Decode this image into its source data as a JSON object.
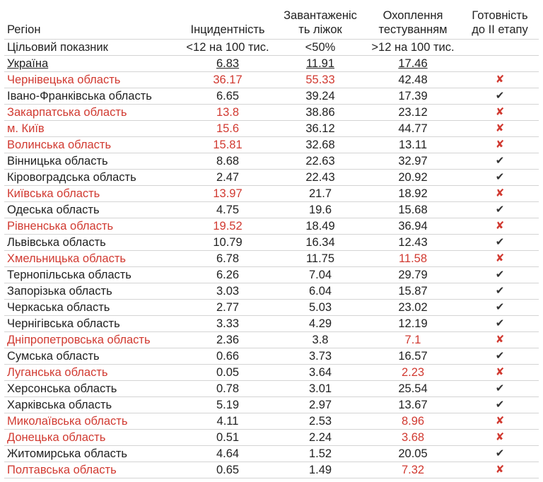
{
  "header": {
    "region": "Регіон",
    "incidence": "Інцидентність",
    "beds_line1": "Завантаженіс",
    "beds_line2": "ть ліжок",
    "testing_line1": "Охоплення",
    "testing_line2": "тестуванням",
    "ready_line1": "Готовність",
    "ready_line2": "до II етапу"
  },
  "target": {
    "label": "Цільовий показник",
    "incidence": "<12 на 100 тис.",
    "beds": "<50%",
    "testing": ">12 на 100 тис."
  },
  "ukraine": {
    "label": "Україна",
    "incidence": "6.83",
    "beds": "11.91",
    "testing": "17.46"
  },
  "colors": {
    "red": "#d13a31",
    "text": "#222222"
  },
  "icons": {
    "ready": "check-icon",
    "not_ready": "cross-icon",
    "ready_glyph": "✔",
    "not_ready_glyph": "✘"
  },
  "rows": [
    {
      "region": "Чернівецька область",
      "incidence": "36.17",
      "beds": "55.33",
      "testing": "42.48",
      "ready": false,
      "red_region": true,
      "red_incidence": true,
      "red_beds": true,
      "red_testing": false
    },
    {
      "region": "Івано-Франківська область",
      "incidence": "6.65",
      "beds": "39.24",
      "testing": "17.39",
      "ready": true,
      "red_region": false,
      "red_incidence": false,
      "red_beds": false,
      "red_testing": false
    },
    {
      "region": "Закарпатська область",
      "incidence": "13.8",
      "beds": "38.86",
      "testing": "23.12",
      "ready": false,
      "red_region": true,
      "red_incidence": true,
      "red_beds": false,
      "red_testing": false
    },
    {
      "region": "м. Київ",
      "incidence": "15.6",
      "beds": "36.12",
      "testing": "44.77",
      "ready": false,
      "red_region": true,
      "red_incidence": true,
      "red_beds": false,
      "red_testing": false
    },
    {
      "region": "Волинська область",
      "incidence": "15.81",
      "beds": "32.68",
      "testing": "13.11",
      "ready": false,
      "red_region": true,
      "red_incidence": true,
      "red_beds": false,
      "red_testing": false
    },
    {
      "region": "Вінницька область",
      "incidence": "8.68",
      "beds": "22.63",
      "testing": "32.97",
      "ready": true,
      "red_region": false,
      "red_incidence": false,
      "red_beds": false,
      "red_testing": false
    },
    {
      "region": "Кіровоградська область",
      "incidence": "2.47",
      "beds": "22.43",
      "testing": "20.92",
      "ready": true,
      "red_region": false,
      "red_incidence": false,
      "red_beds": false,
      "red_testing": false
    },
    {
      "region": "Київська область",
      "incidence": "13.97",
      "beds": "21.7",
      "testing": "18.92",
      "ready": false,
      "red_region": true,
      "red_incidence": true,
      "red_beds": false,
      "red_testing": false
    },
    {
      "region": "Одеська область",
      "incidence": "4.75",
      "beds": "19.6",
      "testing": "15.68",
      "ready": true,
      "red_region": false,
      "red_incidence": false,
      "red_beds": false,
      "red_testing": false
    },
    {
      "region": "Рівненська область",
      "incidence": "19.52",
      "beds": "18.49",
      "testing": "36.94",
      "ready": false,
      "red_region": true,
      "red_incidence": true,
      "red_beds": false,
      "red_testing": false
    },
    {
      "region": "Львівська область",
      "incidence": "10.79",
      "beds": "16.34",
      "testing": "12.43",
      "ready": true,
      "red_region": false,
      "red_incidence": false,
      "red_beds": false,
      "red_testing": false
    },
    {
      "region": "Хмельницька область",
      "incidence": "6.78",
      "beds": "11.75",
      "testing": "11.58",
      "ready": false,
      "red_region": true,
      "red_incidence": false,
      "red_beds": false,
      "red_testing": true
    },
    {
      "region": "Тернопільська область",
      "incidence": "6.26",
      "beds": "7.04",
      "testing": "29.79",
      "ready": true,
      "red_region": false,
      "red_incidence": false,
      "red_beds": false,
      "red_testing": false
    },
    {
      "region": "Запорізька область",
      "incidence": "3.03",
      "beds": "6.04",
      "testing": "15.87",
      "ready": true,
      "red_region": false,
      "red_incidence": false,
      "red_beds": false,
      "red_testing": false
    },
    {
      "region": "Черкаська область",
      "incidence": "2.77",
      "beds": "5.03",
      "testing": "23.02",
      "ready": true,
      "red_region": false,
      "red_incidence": false,
      "red_beds": false,
      "red_testing": false
    },
    {
      "region": "Чернігівська область",
      "incidence": "3.33",
      "beds": "4.29",
      "testing": "12.19",
      "ready": true,
      "red_region": false,
      "red_incidence": false,
      "red_beds": false,
      "red_testing": false
    },
    {
      "region": "Дніпропетровська область",
      "incidence": "2.36",
      "beds": "3.8",
      "testing": "7.1",
      "ready": false,
      "red_region": true,
      "red_incidence": false,
      "red_beds": false,
      "red_testing": true
    },
    {
      "region": "Сумська область",
      "incidence": "0.66",
      "beds": "3.73",
      "testing": "16.57",
      "ready": true,
      "red_region": false,
      "red_incidence": false,
      "red_beds": false,
      "red_testing": false
    },
    {
      "region": "Луганська область",
      "incidence": "0.05",
      "beds": "3.64",
      "testing": "2.23",
      "ready": false,
      "red_region": true,
      "red_incidence": false,
      "red_beds": false,
      "red_testing": true
    },
    {
      "region": "Херсонська область",
      "incidence": "0.78",
      "beds": "3.01",
      "testing": "25.54",
      "ready": true,
      "red_region": false,
      "red_incidence": false,
      "red_beds": false,
      "red_testing": false
    },
    {
      "region": "Харківська область",
      "incidence": "5.19",
      "beds": "2.97",
      "testing": "13.67",
      "ready": true,
      "red_region": false,
      "red_incidence": false,
      "red_beds": false,
      "red_testing": false
    },
    {
      "region": "Миколаївська область",
      "incidence": "4.11",
      "beds": "2.53",
      "testing": "8.96",
      "ready": false,
      "red_region": true,
      "red_incidence": false,
      "red_beds": false,
      "red_testing": true
    },
    {
      "region": "Донецька область",
      "incidence": "0.51",
      "beds": "2.24",
      "testing": "3.68",
      "ready": false,
      "red_region": true,
      "red_incidence": false,
      "red_beds": false,
      "red_testing": true
    },
    {
      "region": "Житомирська область",
      "incidence": "4.64",
      "beds": "1.52",
      "testing": "20.05",
      "ready": true,
      "red_region": false,
      "red_incidence": false,
      "red_beds": false,
      "red_testing": false
    },
    {
      "region": "Полтавська область",
      "incidence": "0.65",
      "beds": "1.49",
      "testing": "7.32",
      "ready": false,
      "red_region": true,
      "red_incidence": false,
      "red_beds": false,
      "red_testing": true
    }
  ]
}
